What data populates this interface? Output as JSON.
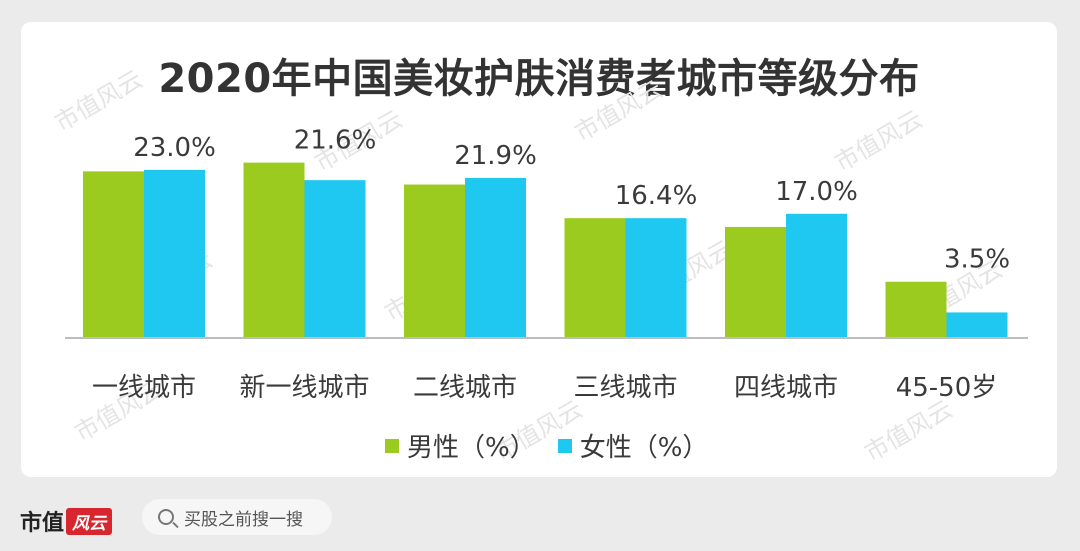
{
  "chart_data": {
    "type": "bar",
    "title": "2020年中国美妆护肤消费者城市等级分布",
    "categories": [
      "一线城市",
      "新一线城市",
      "二线城市",
      "三线城市",
      "四线城市",
      "45-50岁"
    ],
    "series": [
      {
        "name": "男性（%）",
        "color": "#9bcb1e",
        "values": [
          22.8,
          24.0,
          21.0,
          16.4,
          15.2,
          7.7
        ]
      },
      {
        "name": "女性（%）",
        "color": "#1ec8f0",
        "values": [
          23.0,
          21.6,
          21.9,
          16.4,
          17.0,
          3.5
        ]
      }
    ],
    "data_labels": [
      "23.0%",
      "21.6%",
      "21.9%",
      "16.4%",
      "17.0%",
      "3.5%"
    ],
    "ylim": [
      0,
      26
    ],
    "grid": false,
    "legend_position": "bottom"
  },
  "footer": {
    "brand_text": "市值",
    "brand_seal": "风云",
    "search_placeholder": "买股之前搜一搜"
  },
  "watermark": "市值风云"
}
